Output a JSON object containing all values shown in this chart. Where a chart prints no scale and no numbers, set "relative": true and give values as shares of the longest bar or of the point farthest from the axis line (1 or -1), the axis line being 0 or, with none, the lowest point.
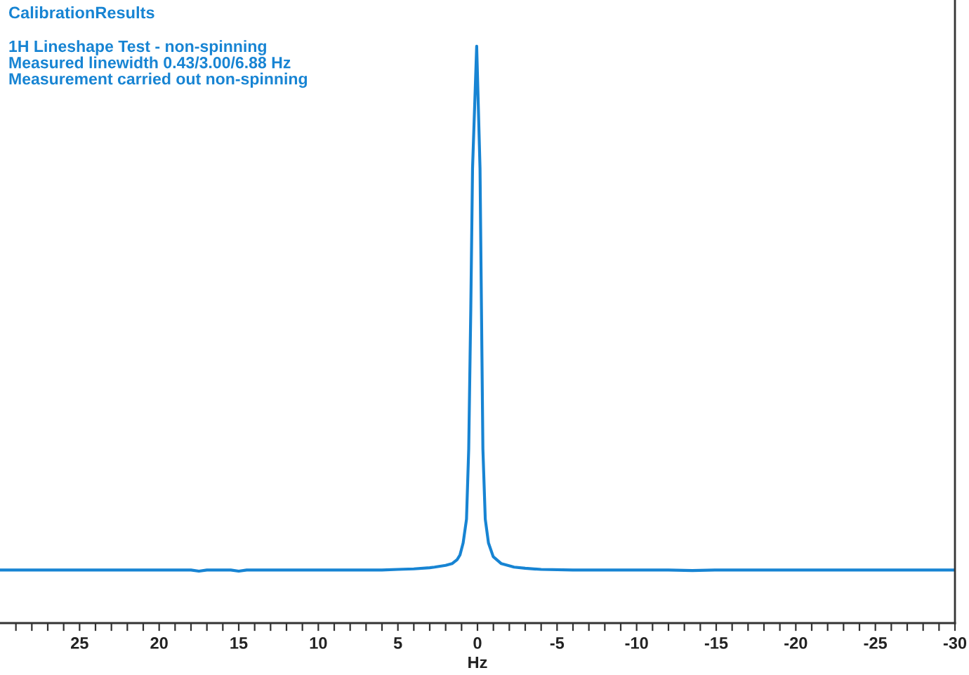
{
  "chart_data": {
    "type": "line",
    "title": "CalibrationResults",
    "subtitle": "1H Lineshape Test - non-spinning",
    "annotations": [
      "Measured linewidth 0.43/3.00/6.88 Hz",
      "Measurement carried out non-spinning"
    ],
    "xlabel": "Hz",
    "relative": true,
    "tick_labels": "x",
    "x": [
      30,
      27,
      25,
      22,
      20,
      18,
      17.5,
      17,
      15.5,
      15,
      14.5,
      12,
      10,
      8,
      6,
      5,
      4,
      3,
      2.7,
      2,
      1.6,
      1.28,
      1.1,
      0.9,
      0.69,
      0.55,
      0.42,
      0.31,
      0.05,
      -0.16,
      -0.25,
      -0.34,
      -0.49,
      -0.69,
      -0.99,
      -1.5,
      -2.3,
      -3,
      -4,
      -6,
      -8,
      -10,
      -12,
      -13.5,
      -15,
      -17,
      -20,
      -23,
      -25,
      -28,
      -30
    ],
    "series": [
      {
        "color": "#1784d3",
        "values": [
          0.092,
          0.092,
          0.092,
          0.092,
          0.092,
          0.092,
          0.09,
          0.092,
          0.092,
          0.09,
          0.092,
          0.092,
          0.092,
          0.092,
          0.092,
          0.093,
          0.094,
          0.096,
          0.097,
          0.1,
          0.103,
          0.11,
          0.118,
          0.139,
          0.18,
          0.302,
          0.545,
          0.788,
          1.0,
          0.788,
          0.545,
          0.302,
          0.18,
          0.139,
          0.115,
          0.103,
          0.097,
          0.095,
          0.093,
          0.092,
          0.092,
          0.092,
          0.092,
          0.091,
          0.092,
          0.092,
          0.092,
          0.092,
          0.092,
          0.092,
          0.092
        ]
      }
    ],
    "xlim": [
      30,
      -30
    ],
    "xticks": [
      {
        "value": 29,
        "label": null
      },
      {
        "value": 28,
        "label": null
      },
      {
        "value": 27,
        "label": null
      },
      {
        "value": 26,
        "label": null
      },
      25,
      {
        "value": 24,
        "label": null
      },
      {
        "value": 23,
        "label": null
      },
      {
        "value": 22,
        "label": null
      },
      {
        "value": 21,
        "label": null
      },
      20,
      {
        "value": 19,
        "label": null
      },
      {
        "value": 18,
        "label": null
      },
      {
        "value": 17,
        "label": null
      },
      {
        "value": 16,
        "label": null
      },
      15,
      {
        "value": 14,
        "label": null
      },
      {
        "value": 13,
        "label": null
      },
      {
        "value": 12,
        "label": null
      },
      {
        "value": 11,
        "label": null
      },
      10,
      {
        "value": 9,
        "label": null
      },
      {
        "value": 8,
        "label": null
      },
      {
        "value": 7,
        "label": null
      },
      {
        "value": 6,
        "label": null
      },
      5,
      {
        "value": 4,
        "label": null
      },
      {
        "value": 3,
        "label": null
      },
      {
        "value": 2,
        "label": null
      },
      {
        "value": 1,
        "label": null
      },
      0,
      {
        "value": -1,
        "label": null
      },
      {
        "value": -2,
        "label": null
      },
      {
        "value": -3,
        "label": null
      },
      {
        "value": -4,
        "label": null
      },
      -5,
      {
        "value": -6,
        "label": null
      },
      {
        "value": -7,
        "label": null
      },
      {
        "value": -8,
        "label": null
      },
      {
        "value": -9,
        "label": null
      },
      -10,
      {
        "value": -11,
        "label": null
      },
      {
        "value": -12,
        "label": null
      },
      {
        "value": -13,
        "label": null
      },
      {
        "value": -14,
        "label": null
      },
      -15,
      {
        "value": -16,
        "label": null
      },
      {
        "value": -17,
        "label": null
      },
      {
        "value": -18,
        "label": null
      },
      {
        "value": -19,
        "label": null
      },
      -20,
      {
        "value": -21,
        "label": null
      },
      {
        "value": -22,
        "label": null
      },
      {
        "value": -23,
        "label": null
      },
      {
        "value": -24,
        "label": null
      },
      -25,
      {
        "value": -26,
        "label": null
      },
      {
        "value": -27,
        "label": null
      },
      {
        "value": -28,
        "label": null
      },
      {
        "value": -29,
        "label": null
      },
      -30
    ]
  }
}
